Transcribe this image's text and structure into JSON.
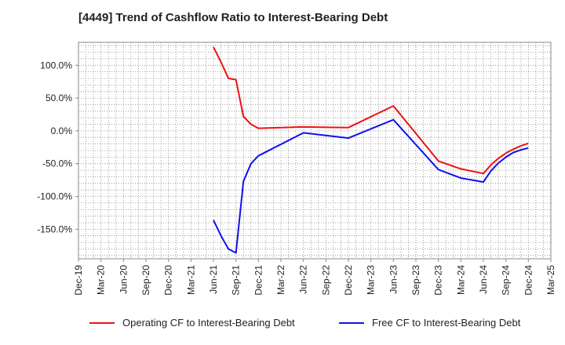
{
  "chart_data": {
    "type": "line",
    "title": "[4449]  Trend of Cashflow Ratio to Interest-Bearing Debt",
    "xlabel": "",
    "ylabel": "",
    "x_ticks": [
      "Dec-19",
      "Mar-20",
      "Jun-20",
      "Sep-20",
      "Dec-20",
      "Mar-21",
      "Jun-21",
      "Sep-21",
      "Dec-21",
      "Mar-22",
      "Jun-22",
      "Sep-22",
      "Dec-22",
      "Mar-23",
      "Jun-23",
      "Sep-23",
      "Dec-23",
      "Mar-24",
      "Jun-24",
      "Sep-24",
      "Dec-24",
      "Mar-25"
    ],
    "y_ticks": [
      100,
      50,
      0,
      -50,
      -100,
      -150
    ],
    "y_tick_labels": [
      "100.0%",
      "50.0%",
      "0.0%",
      "-50.0%",
      "-100.0%",
      "-150.0%"
    ],
    "ylim": [
      -195,
      135
    ],
    "grid": true,
    "legend_position": "bottom",
    "series": [
      {
        "name": "Operating CF to Interest-Bearing Debt",
        "color": "#ee1111",
        "points": [
          [
            "2021-06",
            128
          ],
          [
            "2021-07",
            105
          ],
          [
            "2021-08",
            80
          ],
          [
            "2021-09",
            78
          ],
          [
            "2021-10",
            22
          ],
          [
            "2021-11",
            10
          ],
          [
            "2021-12",
            4
          ],
          [
            "2022-06",
            6
          ],
          [
            "2022-12",
            5
          ],
          [
            "2023-06",
            38
          ],
          [
            "2023-12",
            -46
          ],
          [
            "2024-03",
            -58
          ],
          [
            "2024-06",
            -65
          ],
          [
            "2024-07",
            -52
          ],
          [
            "2024-08",
            -42
          ],
          [
            "2024-09",
            -34
          ],
          [
            "2024-10",
            -28
          ],
          [
            "2024-11",
            -23
          ],
          [
            "2024-12",
            -19
          ]
        ]
      },
      {
        "name": "Free CF to Interest-Bearing Debt",
        "color": "#1111ee",
        "points": [
          [
            "2021-06",
            -136
          ],
          [
            "2021-07",
            -160
          ],
          [
            "2021-08",
            -180
          ],
          [
            "2021-09",
            -186
          ],
          [
            "2021-10",
            -77
          ],
          [
            "2021-11",
            -50
          ],
          [
            "2021-12",
            -38
          ],
          [
            "2022-06",
            -3
          ],
          [
            "2022-12",
            -11
          ],
          [
            "2023-06",
            17
          ],
          [
            "2023-12",
            -59
          ],
          [
            "2024-03",
            -72
          ],
          [
            "2024-06",
            -78
          ],
          [
            "2024-07",
            -61
          ],
          [
            "2024-08",
            -49
          ],
          [
            "2024-09",
            -40
          ],
          [
            "2024-10",
            -33
          ],
          [
            "2024-11",
            -29
          ],
          [
            "2024-12",
            -26
          ]
        ]
      }
    ]
  }
}
